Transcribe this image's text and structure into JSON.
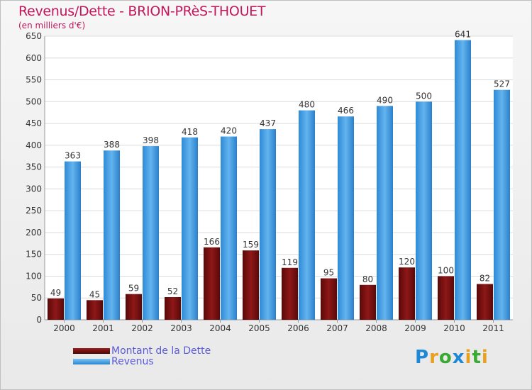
{
  "chart_data": {
    "type": "bar",
    "title": "Revenus/Dette - BRION-PRèS-THOUET",
    "subtitle": "(en milliers d'€)",
    "categories": [
      "2000",
      "2001",
      "2002",
      "2003",
      "2004",
      "2005",
      "2006",
      "2007",
      "2008",
      "2009",
      "2010",
      "2011"
    ],
    "series": [
      {
        "name": "Montant de la Dette",
        "color": "#7a1010",
        "values": [
          49,
          45,
          59,
          52,
          166,
          159,
          119,
          95,
          80,
          120,
          100,
          82
        ]
      },
      {
        "name": "Revenus",
        "color": "#3d9be0",
        "values": [
          363,
          388,
          398,
          418,
          420,
          437,
          480,
          466,
          490,
          500,
          641,
          527
        ]
      }
    ],
    "ylim": [
      0,
      650
    ],
    "yticks": [
      0,
      50,
      100,
      150,
      200,
      250,
      300,
      350,
      400,
      450,
      500,
      550,
      600,
      650
    ],
    "grid": true,
    "xlabel": "",
    "ylabel": "",
    "legend_position": "bottom-left"
  },
  "legend": {
    "debt_label": "Montant de la Dette",
    "revenue_label": "Revenus",
    "text_color": "#5b5bd6"
  },
  "logo": {
    "letters": [
      "P",
      "r",
      "o",
      "x",
      "i",
      "t",
      "i"
    ],
    "colors": [
      "#1e88d8",
      "#e8a020",
      "#3aaa35",
      "#1e88d8",
      "#e8a020",
      "#3aaa35",
      "#e8a020"
    ]
  }
}
